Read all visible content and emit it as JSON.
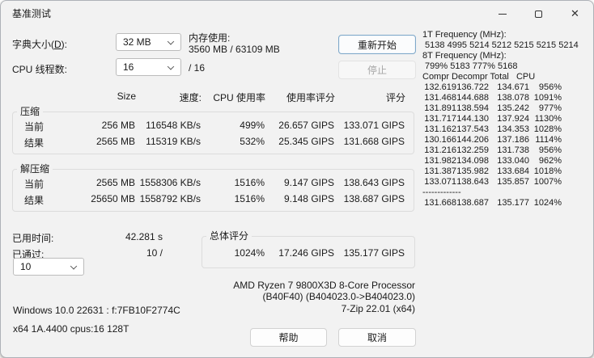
{
  "window": {
    "title": "基准测试"
  },
  "titlebar": {
    "minimize_icon": "minimize",
    "maximize_icon": "maximize",
    "close_icon": "close"
  },
  "controls": {
    "dict_label_prefix": "字典大小(",
    "dict_label_key": "D",
    "dict_label_suffix": "):",
    "dict_value": "32 MB",
    "memory_label": "内存使用:",
    "memory_value": "3560 MB / 63109 MB",
    "threads_label": "CPU 线程数:",
    "threads_value": "16",
    "threads_total": "/ 16",
    "restart_button": "重新开始",
    "stop_button": "停止"
  },
  "table": {
    "headers": [
      "Size",
      "速度:",
      "CPU 使用率",
      "使用率评分",
      "评分"
    ],
    "sections": [
      {
        "label": "压缩",
        "rows": [
          {
            "label": "当前",
            "cells": [
              "256 MB",
              "116548 KB/s",
              "499%",
              "26.657 GIPS",
              "133.071 GIPS"
            ]
          },
          {
            "label": "结果",
            "cells": [
              "2565 MB",
              "115319 KB/s",
              "532%",
              "25.345 GIPS",
              "131.668 GIPS"
            ]
          }
        ]
      },
      {
        "label": "解压缩",
        "rows": [
          {
            "label": "当前",
            "cells": [
              "2565 MB",
              "1558306 KB/s",
              "1516%",
              "9.147 GIPS",
              "138.643 GIPS"
            ]
          },
          {
            "label": "结果",
            "cells": [
              "25650 MB",
              "1558792 KB/s",
              "1516%",
              "9.148 GIPS",
              "138.687 GIPS"
            ]
          }
        ]
      }
    ]
  },
  "status": {
    "elapsed_label": "已用时间:",
    "elapsed_value": "42.281 s",
    "passes_label": "已通过:",
    "passes_value": "10 /",
    "passes_select": "10"
  },
  "total": {
    "label": "总体评分",
    "values": [
      "1024%",
      "17.246 GIPS",
      "135.177 GIPS"
    ]
  },
  "info": {
    "cpu_name": "AMD Ryzen 7 9800X3D 8-Core Processor",
    "cpu_rev": "(B40F40) (B404023.0->B404023.0)",
    "os": "Windows 10.0 22631 : f:7FB10F2774C",
    "app": "7-Zip 22.01 (x64)",
    "arch": "x64 1A.4400 cpus:16 128T"
  },
  "footer": {
    "help_button": "帮助",
    "cancel_button": "取消"
  },
  "stats_panel": {
    "freq_1t_label": "1T Frequency (MHz):",
    "freq_1t_values": " 5138 4995 5214 5212 5215 5215 5214",
    "freq_8t_label": "8T Frequency (MHz):",
    "freq_8t_values": " 799% 5183 777% 5168",
    "table_header": "Compr Decompr Total   CPU",
    "rows": [
      [
        "132.619",
        "136.722",
        "134.671",
        "956%"
      ],
      [
        "131.468",
        "144.688",
        "138.078",
        "1091%"
      ],
      [
        "131.891",
        "138.594",
        "135.242",
        "977%"
      ],
      [
        "131.717",
        "144.130",
        "137.924",
        "1130%"
      ],
      [
        "131.162",
        "137.543",
        "134.353",
        "1028%"
      ],
      [
        "130.166",
        "144.206",
        "137.186",
        "1114%"
      ],
      [
        "131.216",
        "132.259",
        "131.738",
        "956%"
      ],
      [
        "131.982",
        "134.098",
        "133.040",
        "962%"
      ],
      [
        "131.387",
        "135.982",
        "133.684",
        "1018%"
      ],
      [
        "133.071",
        "138.643",
        "135.857",
        "1007%"
      ]
    ],
    "separator": "-------------",
    "totals": [
      "131.668",
      "138.687",
      "135.177",
      "1024%"
    ]
  },
  "colors": {
    "accent_border": "#7fa8c9",
    "window_bg": "#f2f2f2",
    "disabled_text": "#a6a6a6"
  }
}
